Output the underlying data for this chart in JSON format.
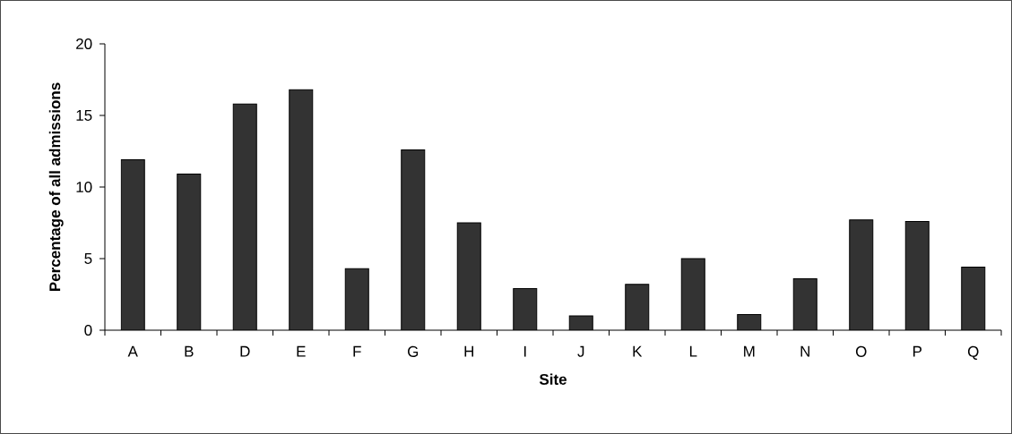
{
  "chart_data": {
    "type": "bar",
    "xlabel": "**Site**",
    "ylabel": "**Percentage of all admissions**",
    "categories": [
      "A",
      "B",
      "D",
      "E",
      "F",
      "G",
      "H",
      "I",
      "J",
      "K",
      "L",
      "M",
      "N",
      "O",
      "P",
      "Q"
    ],
    "values": [
      11.9,
      10.9,
      15.8,
      16.8,
      4.3,
      12.6,
      7.5,
      2.9,
      1.0,
      3.2,
      5.0,
      1.1,
      3.6,
      7.7,
      7.6,
      4.4
    ],
    "color": "#333333",
    "ylim": [
      0,
      20
    ],
    "yticks": [
      0,
      5,
      10,
      15,
      20
    ],
    "grid": false
  }
}
